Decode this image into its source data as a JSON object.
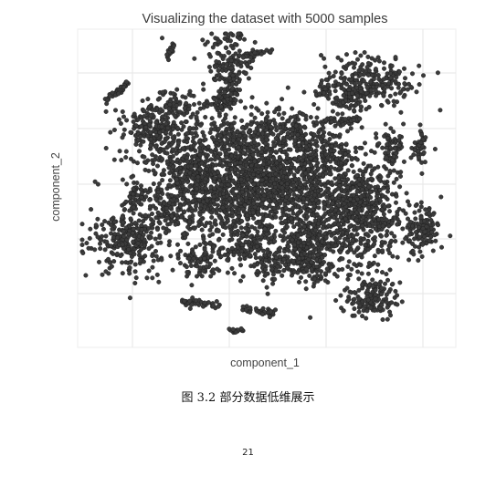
{
  "chart_data": {
    "type": "scatter",
    "title": "Visualizing the dataset with 5000 samples",
    "xlabel": "component_1",
    "ylabel": "component_2",
    "n_points": 5000,
    "grid": true,
    "legend": "none",
    "tick_labels": "none",
    "point_color": "#3b3b3b",
    "point_edge_color": "#1a1a1a",
    "panel_background": "#ffffff",
    "grid_color": "#e6e6e6",
    "cluster_regions": [
      "upper-left",
      "top-center",
      "upper-right",
      "center-left",
      "center",
      "center-right",
      "left",
      "lower-center",
      "lower-right"
    ]
  },
  "figure": {
    "caption": "图 3.2  部分数据低维展示"
  },
  "page": {
    "number": "21"
  }
}
